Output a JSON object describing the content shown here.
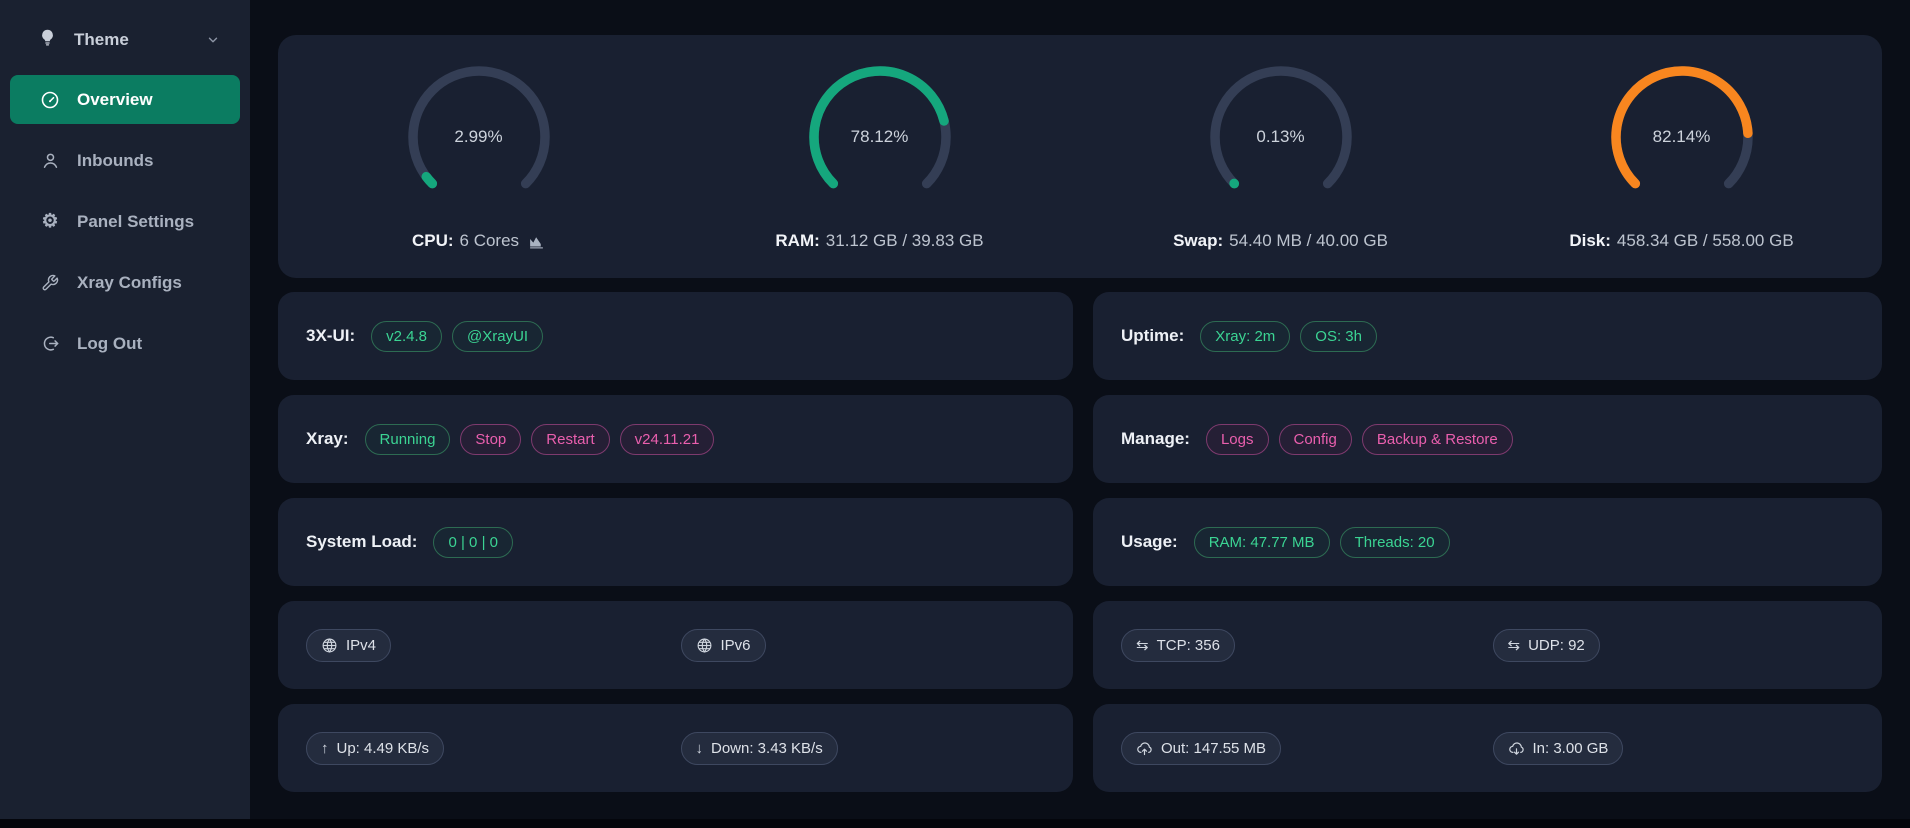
{
  "colors": {
    "sidebar_bg": "#1a2130",
    "main_bg": "#0a0e17",
    "card_bg": "#192031",
    "active_item_bg": "#0b7c61",
    "gauge_track": "#343e55",
    "accent_green": "#15a77d",
    "accent_orange": "#f8861f",
    "tag_green_text": "#3bd493",
    "tag_pink_text": "#ea5fae"
  },
  "sidebar": {
    "theme_label": "Theme",
    "items": [
      {
        "label": "Overview",
        "icon": "dashboard-icon",
        "active": true
      },
      {
        "label": "Inbounds",
        "icon": "user-icon",
        "active": false
      },
      {
        "label": "Panel Settings",
        "icon": "gear-icon",
        "active": false
      },
      {
        "label": "Xray Configs",
        "icon": "wrench-icon",
        "active": false
      },
      {
        "label": "Log Out",
        "icon": "logout-icon",
        "active": false
      }
    ]
  },
  "gauges": [
    {
      "id": "cpu",
      "percent": 2.99,
      "percent_label": "2.99%",
      "title": "CPU:",
      "detail": "6 Cores",
      "accent": "#15a77d",
      "trailing_icon": "area-chart"
    },
    {
      "id": "ram",
      "percent": 78.12,
      "percent_label": "78.12%",
      "title": "RAM:",
      "detail": "31.12 GB / 39.83 GB",
      "accent": "#15a77d",
      "trailing_icon": null
    },
    {
      "id": "swap",
      "percent": 0.13,
      "percent_label": "0.13%",
      "title": "Swap:",
      "detail": "54.40 MB / 40.00 GB",
      "accent": "#15a77d",
      "trailing_icon": null
    },
    {
      "id": "disk",
      "percent": 82.14,
      "percent_label": "82.14%",
      "title": "Disk:",
      "detail": "458.34 GB / 558.00 GB",
      "accent": "#f8861f",
      "trailing_icon": null
    }
  ],
  "chart_data": [
    {
      "type": "gauge",
      "title": "CPU",
      "value_pct": 2.99,
      "label": "CPU: 6 Cores",
      "color": "#15a77d",
      "range": [
        0,
        100
      ]
    },
    {
      "type": "gauge",
      "title": "RAM",
      "value_pct": 78.12,
      "label": "RAM: 31.12 GB / 39.83 GB",
      "color": "#15a77d",
      "range": [
        0,
        100
      ]
    },
    {
      "type": "gauge",
      "title": "Swap",
      "value_pct": 0.13,
      "label": "Swap: 54.40 MB / 40.00 GB",
      "color": "#15a77d",
      "range": [
        0,
        100
      ]
    },
    {
      "type": "gauge",
      "title": "Disk",
      "value_pct": 82.14,
      "label": "Disk: 458.34 GB / 558.00 GB",
      "color": "#f8861f",
      "range": [
        0,
        100
      ]
    }
  ],
  "cards": {
    "left": [
      {
        "type": "label-tags",
        "label": "3X-UI:",
        "tags": [
          {
            "text": "v2.4.8",
            "style": "green",
            "name": "panel-version-tag",
            "click": true
          },
          {
            "text": "@XrayUI",
            "style": "green",
            "name": "telegram-link-tag",
            "click": true
          }
        ]
      },
      {
        "type": "label-tags",
        "label": "Xray:",
        "tags": [
          {
            "text": "Running",
            "style": "green",
            "name": "xray-status-tag",
            "click": false
          },
          {
            "text": "Stop",
            "style": "pink",
            "name": "xray-stop-button",
            "click": true
          },
          {
            "text": "Restart",
            "style": "pink",
            "name": "xray-restart-button",
            "click": true
          },
          {
            "text": "v24.11.21",
            "style": "pink",
            "name": "xray-version-button",
            "click": true
          }
        ]
      },
      {
        "type": "label-tags",
        "label": "System Load:",
        "tags": [
          {
            "text": "0 | 0 | 0",
            "style": "green",
            "name": "system-load-tag",
            "click": false
          }
        ]
      },
      {
        "type": "pills",
        "pills": [
          {
            "icon": "globe",
            "text": "IPv4",
            "name": "ipv4-pill",
            "click": true
          },
          {
            "icon": "globe",
            "text": "IPv6",
            "name": "ipv6-pill",
            "click": true
          }
        ]
      },
      {
        "type": "pills",
        "pills": [
          {
            "icon": "arrow-up",
            "text": "Up: 4.49 KB/s",
            "name": "upload-speed-pill",
            "click": false
          },
          {
            "icon": "arrow-down",
            "text": "Down: 3.43 KB/s",
            "name": "download-speed-pill",
            "click": false
          }
        ]
      }
    ],
    "right": [
      {
        "type": "label-tags",
        "label": "Uptime:",
        "tags": [
          {
            "text": "Xray: 2m",
            "style": "green",
            "name": "uptime-xray-tag",
            "click": false
          },
          {
            "text": "OS: 3h",
            "style": "green",
            "name": "uptime-os-tag",
            "click": false
          }
        ]
      },
      {
        "type": "label-tags",
        "label": "Manage:",
        "tags": [
          {
            "text": "Logs",
            "style": "pink",
            "name": "logs-button",
            "click": true
          },
          {
            "text": "Config",
            "style": "pink",
            "name": "config-button",
            "click": true
          },
          {
            "text": "Backup & Restore",
            "style": "pink",
            "name": "backup-restore-button",
            "click": true
          }
        ]
      },
      {
        "type": "label-tags",
        "label": "Usage:",
        "tags": [
          {
            "text": "RAM: 47.77 MB",
            "style": "green",
            "name": "usage-ram-tag",
            "click": false
          },
          {
            "text": "Threads: 20",
            "style": "green",
            "name": "usage-threads-tag",
            "click": false
          }
        ]
      },
      {
        "type": "pills",
        "pills": [
          {
            "icon": "swap",
            "text": "TCP: 356",
            "name": "tcp-count-pill",
            "click": false
          },
          {
            "icon": "swap",
            "text": "UDP: 92",
            "name": "udp-count-pill",
            "click": false
          }
        ]
      },
      {
        "type": "pills",
        "pills": [
          {
            "icon": "cloud-up",
            "text": "Out: 147.55 MB",
            "name": "traffic-out-pill",
            "click": false
          },
          {
            "icon": "cloud-down",
            "text": "In: 3.00 GB",
            "name": "traffic-in-pill",
            "click": false
          }
        ]
      }
    ]
  }
}
